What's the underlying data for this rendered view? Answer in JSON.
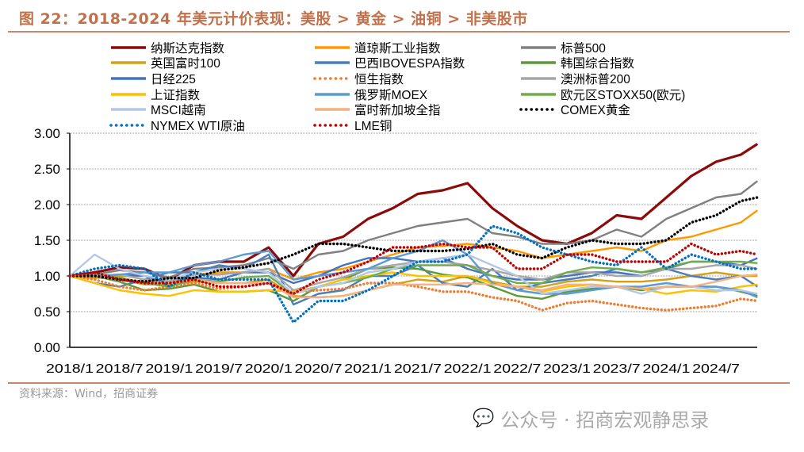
{
  "title": "图 22：2018-2024 年美元计价表现：美股 > 黄金 > 油铜 > 非美股市",
  "source": "资料来源：Wind，招商证券",
  "watermark": "公众号 · 招商宏观静思录",
  "chart_data": {
    "type": "line",
    "title": "",
    "xlabel": "",
    "ylabel": "",
    "ylim": [
      0,
      3
    ],
    "yticks": [
      "0.00",
      "0.50",
      "1.00",
      "1.50",
      "2.00",
      "2.50",
      "3.00"
    ],
    "xticks": [
      "2018/1",
      "2018/7",
      "2019/1",
      "2019/7",
      "2020/1",
      "2020/7",
      "2021/1",
      "2021/7",
      "2022/1",
      "2022/7",
      "2023/1",
      "2023/7",
      "2024/1",
      "2024/7"
    ],
    "grid": "horizontal-dotted",
    "legend": "top",
    "x": [
      "2018/1",
      "2018/4",
      "2018/7",
      "2018/10",
      "2019/1",
      "2019/4",
      "2019/7",
      "2019/10",
      "2020/1",
      "2020/4",
      "2020/7",
      "2020/10",
      "2021/1",
      "2021/4",
      "2021/7",
      "2021/10",
      "2022/1",
      "2022/4",
      "2022/7",
      "2022/10",
      "2023/1",
      "2023/4",
      "2023/7",
      "2023/10",
      "2024/1",
      "2024/4",
      "2024/7",
      "2024/10",
      "2024/12"
    ],
    "series": [
      {
        "name": "纳斯达克指数",
        "color": "#8B0A0A",
        "style": "solid",
        "values": [
          1.0,
          1.05,
          1.12,
          1.1,
          0.95,
          1.15,
          1.2,
          1.2,
          1.4,
          1.0,
          1.45,
          1.55,
          1.8,
          1.95,
          2.15,
          2.2,
          2.3,
          1.95,
          1.7,
          1.5,
          1.45,
          1.6,
          1.85,
          1.8,
          2.1,
          2.4,
          2.6,
          2.7,
          2.85
        ]
      },
      {
        "name": "道琼斯工业指数",
        "color": "#FF9900",
        "style": "solid",
        "values": [
          1.0,
          0.97,
          1.0,
          1.0,
          0.93,
          1.02,
          1.05,
          1.05,
          1.1,
          0.95,
          1.05,
          1.1,
          1.2,
          1.3,
          1.4,
          1.42,
          1.45,
          1.4,
          1.35,
          1.25,
          1.3,
          1.35,
          1.4,
          1.35,
          1.5,
          1.55,
          1.65,
          1.75,
          1.92
        ]
      },
      {
        "name": "标普500",
        "color": "#808080",
        "style": "solid",
        "values": [
          1.0,
          1.02,
          1.08,
          1.05,
          0.98,
          1.1,
          1.12,
          1.15,
          1.25,
          1.1,
          1.3,
          1.35,
          1.5,
          1.6,
          1.7,
          1.75,
          1.8,
          1.6,
          1.55,
          1.45,
          1.45,
          1.5,
          1.65,
          1.55,
          1.8,
          1.95,
          2.1,
          2.15,
          2.33
        ]
      },
      {
        "name": "英国富时100",
        "color": "#D4A017",
        "style": "solid",
        "values": [
          1.0,
          0.98,
          0.95,
          0.88,
          0.88,
          0.92,
          0.9,
          0.9,
          0.95,
          0.72,
          0.7,
          0.72,
          0.8,
          0.88,
          0.95,
          0.92,
          1.0,
          0.92,
          0.85,
          0.85,
          0.92,
          0.95,
          0.92,
          0.92,
          0.95,
          1.0,
          1.05,
          1.0,
          1.0
        ]
      },
      {
        "name": "巴西IBOVESPA指数",
        "color": "#4A7EBB",
        "style": "solid",
        "values": [
          1.0,
          0.9,
          0.85,
          0.95,
          1.05,
          1.05,
          1.15,
          1.1,
          1.3,
          0.6,
          0.75,
          0.8,
          1.0,
          1.0,
          1.15,
          0.9,
          0.85,
          1.1,
          0.8,
          0.9,
          0.95,
          1.0,
          1.1,
          1.05,
          1.1,
          1.0,
          0.95,
          1.0,
          0.85
        ]
      },
      {
        "name": "韩国综合指数",
        "color": "#5A9A3A",
        "style": "solid",
        "values": [
          1.0,
          1.0,
          0.92,
          0.8,
          0.82,
          0.88,
          0.78,
          0.78,
          0.8,
          0.65,
          0.85,
          0.95,
          1.1,
          1.12,
          1.1,
          1.02,
          0.98,
          0.85,
          0.72,
          0.68,
          0.78,
          0.82,
          0.85,
          0.8,
          0.85,
          0.85,
          0.85,
          0.78,
          0.72
        ]
      },
      {
        "name": "日经225",
        "color": "#4472C4",
        "style": "solid",
        "values": [
          1.0,
          1.0,
          1.02,
          1.0,
          0.9,
          0.98,
          0.95,
          1.05,
          1.05,
          0.9,
          1.0,
          1.15,
          1.25,
          1.25,
          1.2,
          1.25,
          1.1,
          1.0,
          0.95,
          0.95,
          1.0,
          1.05,
          1.05,
          1.0,
          1.1,
          1.2,
          1.2,
          1.15,
          1.25
        ]
      },
      {
        "name": "恒生指数",
        "color": "#ED7D31",
        "style": "dotted",
        "values": [
          1.0,
          0.95,
          0.85,
          0.8,
          0.85,
          0.9,
          0.82,
          0.85,
          0.9,
          0.78,
          0.8,
          0.82,
          0.9,
          0.9,
          0.85,
          0.78,
          0.78,
          0.7,
          0.65,
          0.52,
          0.62,
          0.65,
          0.6,
          0.55,
          0.52,
          0.55,
          0.58,
          0.68,
          0.65
        ]
      },
      {
        "name": "澳洲标普200",
        "color": "#A6A6A6",
        "style": "solid",
        "values": [
          1.0,
          1.0,
          1.02,
          0.95,
          0.92,
          1.02,
          1.02,
          1.05,
          1.1,
          0.8,
          0.9,
          0.98,
          1.1,
          1.15,
          1.2,
          1.2,
          1.15,
          1.08,
          1.0,
          0.95,
          1.05,
          1.05,
          1.0,
          1.0,
          1.1,
          1.1,
          1.15,
          1.15,
          1.1
        ]
      },
      {
        "name": "上证指数",
        "color": "#FFC000",
        "style": "solid",
        "values": [
          1.0,
          0.9,
          0.8,
          0.75,
          0.72,
          0.8,
          0.78,
          0.78,
          0.8,
          0.78,
          0.85,
          0.95,
          1.0,
          1.05,
          1.0,
          1.0,
          1.0,
          0.9,
          0.85,
          0.78,
          0.85,
          0.88,
          0.85,
          0.82,
          0.75,
          0.8,
          0.78,
          0.85,
          0.88
        ]
      },
      {
        "name": "俄罗斯MOEX",
        "color": "#5B9BD5",
        "style": "solid",
        "values": [
          1.0,
          1.0,
          1.02,
          1.05,
          1.05,
          1.15,
          1.2,
          1.3,
          1.35,
          0.95,
          1.0,
          1.05,
          1.1,
          1.25,
          1.35,
          1.5,
          1.3,
          0.9,
          0.8,
          0.75,
          0.75,
          0.8,
          0.85,
          0.85,
          0.9,
          0.85,
          0.85,
          0.8,
          0.7
        ]
      },
      {
        "name": "欧元区STOXX50(欧元)",
        "color": "#70AD47",
        "style": "solid",
        "values": [
          1.0,
          1.0,
          0.98,
          0.9,
          0.85,
          0.95,
          0.92,
          0.98,
          1.0,
          0.75,
          0.85,
          0.9,
          0.98,
          1.1,
          1.15,
          1.15,
          1.15,
          1.0,
          0.9,
          0.9,
          1.05,
          1.12,
          1.1,
          1.05,
          1.12,
          1.2,
          1.2,
          1.2,
          1.18
        ]
      },
      {
        "name": "MSCI越南",
        "color": "#B4C7E7",
        "style": "solid",
        "values": [
          1.0,
          1.3,
          1.1,
          1.0,
          0.95,
          1.05,
          1.1,
          1.1,
          1.05,
          0.75,
          0.85,
          0.9,
          1.05,
          1.1,
          1.2,
          1.25,
          1.3,
          1.15,
          1.0,
          0.75,
          0.8,
          0.85,
          0.85,
          0.75,
          0.85,
          0.85,
          0.8,
          0.8,
          0.75
        ]
      },
      {
        "name": "富时新加坡全指",
        "color": "#F4B183",
        "style": "solid",
        "values": [
          1.0,
          1.0,
          0.95,
          0.92,
          0.9,
          0.95,
          0.9,
          0.9,
          0.9,
          0.7,
          0.7,
          0.72,
          0.8,
          0.88,
          0.88,
          0.88,
          0.9,
          0.88,
          0.85,
          0.8,
          0.88,
          0.88,
          0.85,
          0.82,
          0.85,
          0.85,
          0.92,
          1.0,
          1.02
        ]
      },
      {
        "name": "COMEX黄金",
        "color": "#000000",
        "style": "dotted",
        "values": [
          1.0,
          1.0,
          0.95,
          0.92,
          0.97,
          0.97,
          1.08,
          1.12,
          1.18,
          1.3,
          1.45,
          1.45,
          1.4,
          1.35,
          1.35,
          1.35,
          1.38,
          1.45,
          1.3,
          1.25,
          1.4,
          1.5,
          1.45,
          1.45,
          1.5,
          1.75,
          1.85,
          2.05,
          2.1
        ]
      },
      {
        "name": "NYMEX WTI原油",
        "color": "#0070C0",
        "style": "dotted",
        "values": [
          1.0,
          1.1,
          1.15,
          1.1,
          0.85,
          1.05,
          0.95,
          0.95,
          0.95,
          0.35,
          0.65,
          0.65,
          0.8,
          1.0,
          1.2,
          1.2,
          1.3,
          1.7,
          1.6,
          1.4,
          1.3,
          1.2,
          1.15,
          1.4,
          1.1,
          1.3,
          1.2,
          1.1,
          1.1
        ]
      },
      {
        "name": "LME铜",
        "color": "#C00000",
        "style": "dotted",
        "values": [
          1.0,
          1.05,
          0.95,
          0.9,
          0.9,
          0.95,
          0.85,
          0.85,
          0.9,
          0.75,
          0.95,
          1.05,
          1.2,
          1.4,
          1.4,
          1.45,
          1.4,
          1.4,
          1.1,
          1.1,
          1.3,
          1.3,
          1.2,
          1.2,
          1.2,
          1.45,
          1.3,
          1.35,
          1.3
        ]
      }
    ]
  }
}
